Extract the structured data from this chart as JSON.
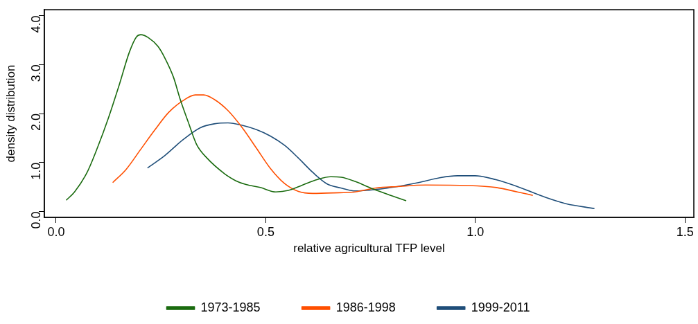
{
  "chart_data": {
    "type": "line",
    "xlabel": "relative agricultural TFP level",
    "ylabel": "density distribution",
    "xlim": [
      -0.028,
      1.521
    ],
    "ylim": [
      -0.12,
      4.12
    ],
    "xticks": [
      {
        "value": 0,
        "label": "0.0"
      },
      {
        "value": 0.5,
        "label": "0.5"
      },
      {
        "value": 1,
        "label": "1.0"
      },
      {
        "value": 1.5,
        "label": "1.5"
      }
    ],
    "yticks": [
      {
        "value": 0,
        "label": "0.0"
      },
      {
        "value": 1,
        "label": "1.0"
      },
      {
        "value": 2,
        "label": "2.0"
      },
      {
        "value": 3,
        "label": "3.0"
      },
      {
        "value": 4,
        "label": "4.0"
      }
    ],
    "grid": false,
    "legend": "bottom",
    "marker": "none",
    "line_style": "solid",
    "series": [
      {
        "name": "1973-1985",
        "color": "#1a6b0f",
        "x": [
          0.024,
          0.044,
          0.074,
          0.099,
          0.124,
          0.15,
          0.175,
          0.192,
          0.202,
          0.22,
          0.243,
          0.259,
          0.28,
          0.296,
          0.315,
          0.335,
          0.36,
          0.402,
          0.428,
          0.453,
          0.487,
          0.524,
          0.554,
          0.588,
          0.622,
          0.655,
          0.68,
          0.714,
          0.756,
          0.798,
          0.835
        ],
        "values": [
          0.23,
          0.4,
          0.8,
          1.31,
          1.89,
          2.57,
          3.26,
          3.57,
          3.61,
          3.55,
          3.37,
          3.14,
          2.74,
          2.29,
          1.83,
          1.37,
          1.09,
          0.77,
          0.63,
          0.55,
          0.49,
          0.4,
          0.43,
          0.54,
          0.65,
          0.71,
          0.7,
          0.61,
          0.46,
          0.33,
          0.22
        ]
      },
      {
        "name": "1986-1998",
        "color": "#ff4f00",
        "x": [
          0.135,
          0.167,
          0.201,
          0.235,
          0.268,
          0.302,
          0.332,
          0.352,
          0.377,
          0.41,
          0.444,
          0.478,
          0.511,
          0.545,
          0.578,
          0.612,
          0.662,
          0.713,
          0.763,
          0.814,
          0.881,
          0.982,
          1.05,
          1.1,
          1.137
        ],
        "values": [
          0.59,
          0.86,
          1.26,
          1.66,
          2.02,
          2.26,
          2.38,
          2.38,
          2.29,
          2.06,
          1.71,
          1.29,
          0.88,
          0.57,
          0.41,
          0.37,
          0.38,
          0.4,
          0.48,
          0.51,
          0.54,
          0.53,
          0.49,
          0.4,
          0.33
        ]
      },
      {
        "name": "1999-2011",
        "color": "#1f4e79",
        "x": [
          0.218,
          0.259,
          0.302,
          0.344,
          0.377,
          0.41,
          0.444,
          0.478,
          0.511,
          0.545,
          0.578,
          0.612,
          0.645,
          0.679,
          0.713,
          0.763,
          0.814,
          0.864,
          0.915,
          0.957,
          0.999,
          1.049,
          1.1,
          1.167,
          1.216,
          1.284
        ],
        "values": [
          0.89,
          1.14,
          1.46,
          1.71,
          1.79,
          1.81,
          1.76,
          1.67,
          1.54,
          1.35,
          1.09,
          0.8,
          0.57,
          0.48,
          0.42,
          0.45,
          0.51,
          0.59,
          0.69,
          0.73,
          0.73,
          0.65,
          0.51,
          0.29,
          0.16,
          0.06
        ]
      }
    ]
  }
}
